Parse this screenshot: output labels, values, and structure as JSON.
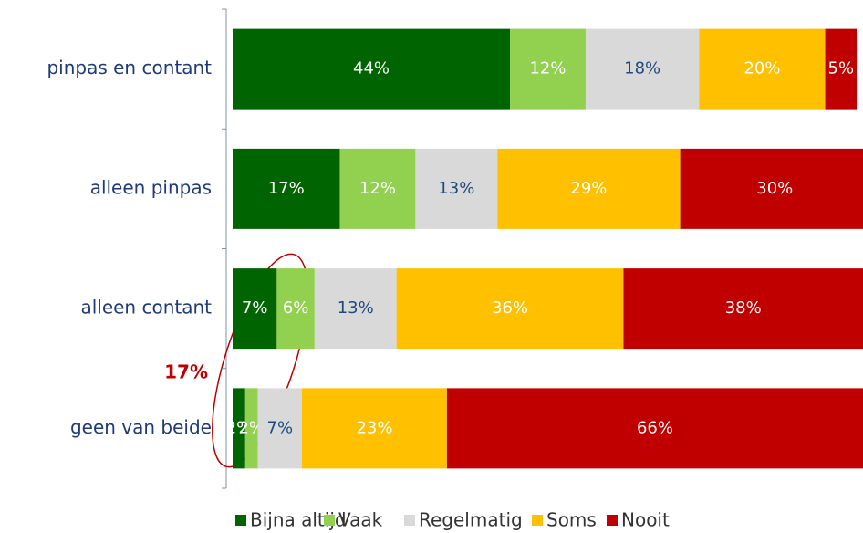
{
  "chart_data": {
    "type": "stacked-barh",
    "categories": [
      "pinpas en contant",
      "alleen pinpas",
      "alleen contant",
      "geen van beide"
    ],
    "xlim": [
      0,
      100
    ],
    "legend": "bottom",
    "series": [
      {
        "name": "Bijna altijd",
        "color": "#006400",
        "values": [
          44,
          17,
          7,
          2
        ],
        "value_labels": [
          "44%",
          "17%",
          "7%",
          "2%"
        ]
      },
      {
        "name": "Vaak",
        "color": "#92d050",
        "values": [
          12,
          12,
          6,
          2
        ],
        "value_labels": [
          "12%",
          "12%",
          "6%",
          "2%"
        ]
      },
      {
        "name": "Regelmatig",
        "color": "#d9d9d9",
        "values": [
          18,
          13,
          13,
          7
        ],
        "value_labels": [
          "18%",
          "13%",
          "13%",
          "7%"
        ]
      },
      {
        "name": "Soms",
        "color": "#ffc000",
        "values": [
          20,
          29,
          36,
          23
        ],
        "value_labels": [
          "20%",
          "29%",
          "36%",
          "23%"
        ]
      },
      {
        "name": "Nooit",
        "color": "#c00000",
        "values": [
          5,
          30,
          38,
          66
        ],
        "value_labels": [
          "5%",
          "30%",
          "38%",
          "66%"
        ]
      }
    ],
    "annotations": [
      {
        "text": "17%",
        "color": "#c00000"
      }
    ]
  }
}
